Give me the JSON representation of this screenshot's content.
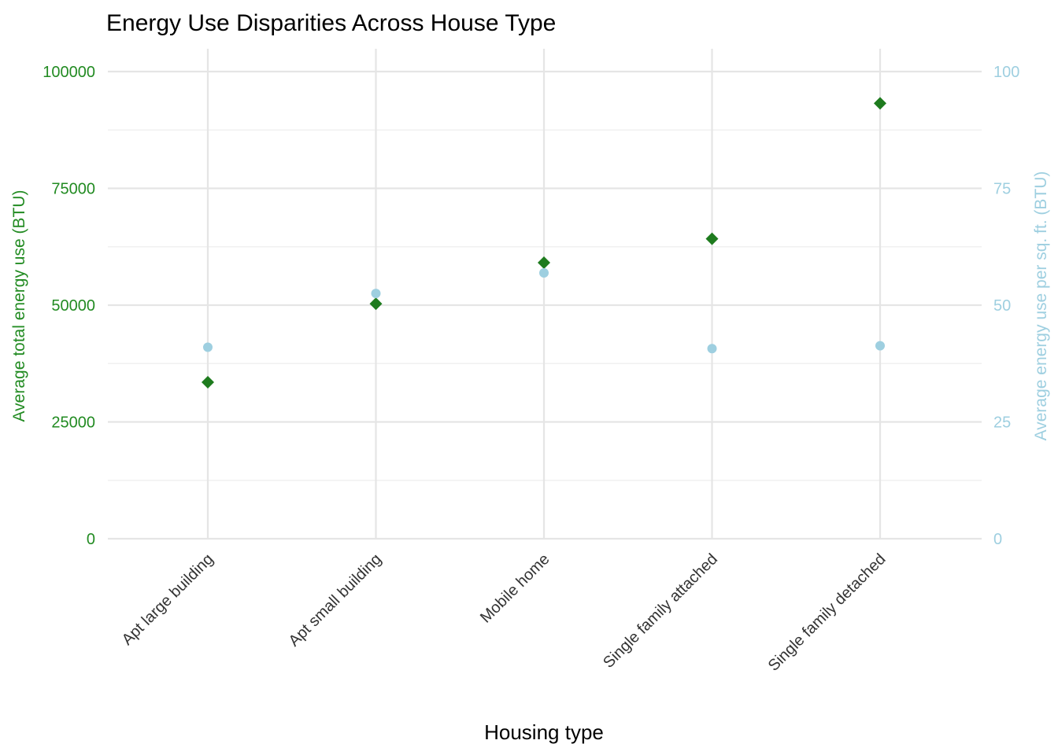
{
  "chart_data": {
    "type": "scatter",
    "title": "Energy Use Disparities Across House Type",
    "xlabel": "Housing type",
    "ylabel_left": "Average total energy use (BTU)",
    "ylabel_right": "Average energy use per sq. ft. (BTU)",
    "categories": [
      "Apt large building",
      "Apt small building",
      "Mobile home",
      "Single family attached",
      "Single family detached"
    ],
    "y_left": {
      "range": [
        0,
        100000
      ],
      "ticks": [
        0,
        25000,
        50000,
        75000,
        100000
      ],
      "tick_labels": [
        "0",
        "25000",
        "50000",
        "75000",
        "100000"
      ],
      "color": "#228b22"
    },
    "y_right": {
      "range": [
        0,
        100
      ],
      "ticks": [
        0,
        25,
        50,
        75,
        100
      ],
      "tick_labels": [
        "0",
        "25",
        "50",
        "75",
        "100"
      ],
      "color": "#9ecfe0"
    },
    "series": [
      {
        "axis": "left",
        "marker": "diamond",
        "color": "#1e7b1e",
        "values": [
          33500,
          50300,
          59100,
          64200,
          93200
        ]
      },
      {
        "axis": "right",
        "marker": "circle",
        "color": "#9ecfe0",
        "values": [
          41.0,
          52.5,
          56.9,
          40.7,
          41.3
        ]
      }
    ],
    "grid": true,
    "legend": "none"
  }
}
